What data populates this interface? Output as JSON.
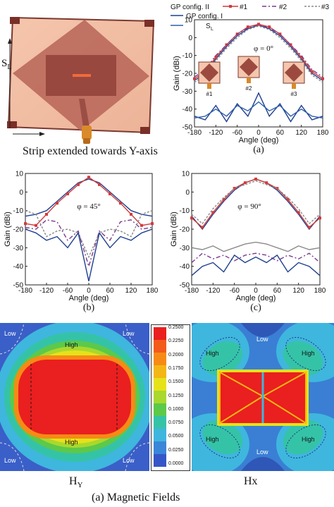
{
  "figure": {
    "panel_a": {
      "caption": "Strip extended towards Y-axis",
      "dim_label": "S",
      "dim_sub": "L",
      "sub_label": "(a)"
    },
    "panel_b": {
      "sub_label": "(b)"
    },
    "panel_c": {
      "sub_label": "(c)"
    },
    "fields": {
      "hy_label": "H",
      "hy_sub": "Y",
      "hx_label": "Hx",
      "caption": "(a)  Magnetic Fields",
      "hy_region_labels": [
        "Low",
        "Low",
        "High",
        "High",
        "Low",
        "Low"
      ],
      "hx_region_labels": [
        "Low",
        "High",
        "High",
        "High",
        "High",
        "Low"
      ],
      "colorbar_ticks": [
        "0.2500",
        "0.2250",
        "0.2000",
        "0.1750",
        "0.1500",
        "0.1250",
        "0.1000",
        "0.0750",
        "0.0500",
        "0.0250",
        "0.0000"
      ],
      "colorbar_colors": [
        "#ea1f1f",
        "#f35a1b",
        "#f78a16",
        "#f3b614",
        "#e6e21a",
        "#a9d82e",
        "#5cc94a",
        "#35c3a8",
        "#3fb6de",
        "#3a86d8",
        "#3456c8"
      ]
    }
  },
  "chart_data": [
    {
      "type": "line",
      "panel": "a",
      "annotation": "φ = 0°",
      "xlabel": "Angle (deg)",
      "ylabel": "Gain (dBi)",
      "xlim": [
        -180,
        180
      ],
      "ylim": [
        -50,
        10
      ],
      "xticks": [
        "-180",
        "-120",
        "-60",
        "0",
        "60",
        "120",
        "180"
      ],
      "yticks": [
        "10",
        "0",
        "-10",
        "-20",
        "-30",
        "-40",
        "-50"
      ],
      "legend": [
        "GP config. II",
        "#1",
        "#2",
        "#3",
        "GP config. I",
        "S"
      ],
      "legend_sub": "L",
      "inset_labels": [
        "#1",
        "#2",
        "#3"
      ],
      "x": [
        -180,
        -150,
        -120,
        -90,
        -60,
        -30,
        0,
        30,
        60,
        90,
        120,
        150,
        180
      ],
      "series": [
        {
          "name": "GP config. II",
          "color": "#1f3f8f",
          "values": [
            -24,
            -20,
            -12,
            -5,
            1,
            5,
            7,
            5,
            1,
            -5,
            -12,
            -20,
            -24
          ]
        },
        {
          "name": "#1",
          "color": "#d23a3a",
          "values": [
            -23,
            -19,
            -11,
            -4,
            2,
            6,
            7.5,
            6,
            2,
            -4,
            -11,
            -19,
            -23
          ]
        },
        {
          "name": "#2",
          "color": "#7a3a8e",
          "values": [
            -22,
            -18,
            -10,
            -4,
            2,
            5.5,
            7,
            5.5,
            2,
            -4,
            -10,
            -18,
            -22
          ]
        },
        {
          "name": "#3",
          "color": "#8a8a8a",
          "values": [
            -25,
            -21,
            -13,
            -6,
            0,
            4.5,
            6.5,
            4.5,
            0,
            -6,
            -13,
            -21,
            -25
          ]
        },
        {
          "name": "GP config. I",
          "color": "#1f3f8f",
          "values": [
            -44,
            -46,
            -38,
            -47,
            -37,
            -44,
            -31,
            -44,
            -37,
            -47,
            -38,
            -46,
            -44
          ]
        },
        {
          "name": "S",
          "color": "#2f5fae",
          "values": [
            -45,
            -44,
            -40,
            -44,
            -38,
            -41,
            -36,
            -41,
            -38,
            -44,
            -40,
            -44,
            -45
          ]
        }
      ]
    },
    {
      "type": "line",
      "panel": "b",
      "annotation": "φ = 45°",
      "xlabel": "Angle (deg)",
      "ylabel": "Gain (dBi)",
      "xlim": [
        -180,
        180
      ],
      "ylim": [
        -50,
        10
      ],
      "xticks": [
        "-180",
        "-120",
        "-60",
        "0",
        "60",
        "120",
        "180"
      ],
      "yticks": [
        "10",
        "0",
        "-10",
        "-20",
        "-30",
        "-40",
        "-50"
      ],
      "x": [
        -180,
        -150,
        -120,
        -90,
        -60,
        -30,
        0,
        30,
        60,
        90,
        120,
        150,
        180
      ],
      "series": [
        {
          "name": "GP config. II",
          "color": "#1f3f8f",
          "values": [
            -13,
            -12,
            -10,
            -5,
            0,
            5,
            7,
            5,
            0,
            -5,
            -10,
            -12,
            -13
          ]
        },
        {
          "name": "#1",
          "color": "#d23a3a",
          "values": [
            -17,
            -18,
            -12,
            -6,
            -1,
            4,
            8,
            4,
            -1,
            -6,
            -12,
            -18,
            -17
          ]
        },
        {
          "name": "#2",
          "color": "#7a3a8e",
          "values": [
            -19,
            -20,
            -15,
            -16,
            -26,
            -21,
            -40,
            -21,
            -26,
            -16,
            -15,
            -20,
            -19
          ]
        },
        {
          "name": "#3",
          "color": "#8a8a8a",
          "values": [
            -10,
            -12,
            -24,
            -21,
            -20,
            -22,
            -35,
            -22,
            -20,
            -21,
            -24,
            -12,
            -10
          ]
        },
        {
          "name": "GP config. I",
          "color": "#1f3f8f",
          "values": [
            -20,
            -22,
            -26,
            -24,
            -30,
            -22,
            -48,
            -22,
            -30,
            -24,
            -26,
            -22,
            -20
          ]
        }
      ]
    },
    {
      "type": "line",
      "panel": "c",
      "annotation": "φ = 90°",
      "xlabel": "Angle (deg)",
      "ylabel": "Gain (dBi)",
      "xlim": [
        -180,
        180
      ],
      "ylim": [
        -50,
        10
      ],
      "xticks": [
        "-180",
        "-120",
        "-60",
        "0",
        "60",
        "120",
        "180"
      ],
      "yticks": [
        "10",
        "0",
        "-10",
        "-20",
        "-30",
        "-40",
        "-50"
      ],
      "x": [
        -180,
        -150,
        -120,
        -90,
        -60,
        -30,
        0,
        30,
        60,
        90,
        120,
        150,
        180
      ],
      "series": [
        {
          "name": "GP config. II",
          "color": "#1f3f8f",
          "values": [
            -13,
            -20,
            -12,
            -5,
            1,
            5,
            7,
            5,
            1,
            -5,
            -12,
            -20,
            -13
          ]
        },
        {
          "name": "#1",
          "color": "#d23a3a",
          "values": [
            -14,
            -19,
            -11,
            -4,
            2,
            5,
            7,
            5,
            2,
            -4,
            -11,
            -19,
            -14
          ]
        },
        {
          "name": "#3",
          "color": "#8a8a8a",
          "values": [
            -12,
            -17,
            -9,
            -3,
            2,
            4,
            6,
            4,
            2,
            -3,
            -9,
            -17,
            -12
          ]
        },
        {
          "name": "#2",
          "color": "#7a3a8e",
          "values": [
            -38,
            -33,
            -36,
            -34,
            -37,
            -34,
            -33,
            -34,
            -37,
            -34,
            -36,
            -33,
            -38
          ]
        },
        {
          "name": "GP config. I",
          "color": "#1f3f8f",
          "values": [
            -45,
            -40,
            -38,
            -43,
            -34,
            -38,
            -35,
            -38,
            -34,
            -43,
            -38,
            -40,
            -45
          ]
        },
        {
          "name": "S",
          "color": "#8a8a8a",
          "values": [
            -30,
            -31,
            -29,
            -32,
            -30,
            -28,
            -27,
            -28,
            -30,
            -32,
            -29,
            -31,
            -30
          ]
        }
      ]
    }
  ]
}
